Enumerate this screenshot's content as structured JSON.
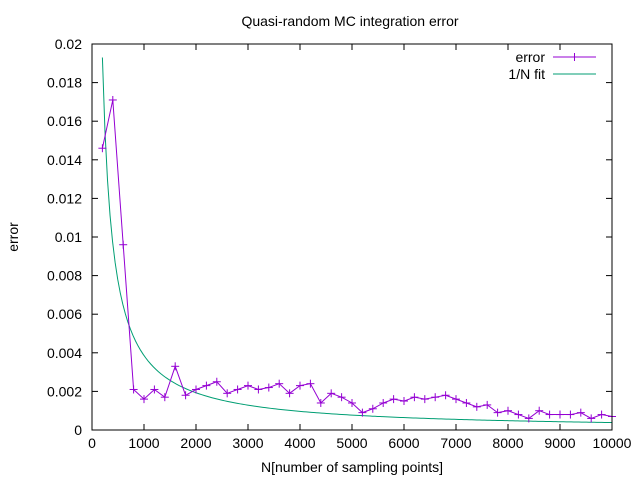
{
  "chart_data": {
    "type": "line",
    "title": "Quasi-random MC integration error",
    "xlabel": "N[number of sampling points]",
    "ylabel": "error",
    "xlim": [
      0,
      10000
    ],
    "ylim": [
      0,
      0.02
    ],
    "xticks": [
      0,
      1000,
      2000,
      3000,
      4000,
      5000,
      6000,
      7000,
      8000,
      9000,
      10000
    ],
    "xtick_labels": [
      "0",
      "1000",
      "2000",
      "3000",
      "4000",
      "5000",
      "6000",
      "7000",
      "8000",
      "9000",
      "10000"
    ],
    "yticks": [
      0,
      0.002,
      0.004,
      0.006,
      0.008,
      0.01,
      0.012,
      0.014,
      0.016,
      0.018,
      0.02
    ],
    "ytick_labels": [
      "0",
      "0.002",
      "0.004",
      "0.006",
      "0.008",
      "0.01",
      "0.012",
      "0.014",
      "0.016",
      "0.018",
      "0.02"
    ],
    "grid": false,
    "legend_position": "top-right",
    "series": [
      {
        "name": "error",
        "color": "#9400d3",
        "marker": "plus",
        "x": [
          200,
          400,
          600,
          800,
          1000,
          1200,
          1400,
          1600,
          1800,
          2000,
          2200,
          2400,
          2600,
          2800,
          3000,
          3200,
          3400,
          3600,
          3800,
          4000,
          4200,
          4400,
          4600,
          4800,
          5000,
          5200,
          5400,
          5600,
          5800,
          6000,
          6200,
          6400,
          6600,
          6800,
          7000,
          7200,
          7400,
          7600,
          7800,
          8000,
          8200,
          8400,
          8600,
          8800,
          9000,
          9200,
          9400,
          9600,
          9800,
          10000
        ],
        "y": [
          0.0146,
          0.0171,
          0.0096,
          0.0021,
          0.0016,
          0.0021,
          0.0017,
          0.0033,
          0.0018,
          0.0021,
          0.0023,
          0.0025,
          0.0019,
          0.0021,
          0.0023,
          0.0021,
          0.0022,
          0.0024,
          0.0019,
          0.0023,
          0.0024,
          0.0014,
          0.0019,
          0.0017,
          0.0014,
          0.0009,
          0.0011,
          0.0014,
          0.0016,
          0.0015,
          0.0017,
          0.0016,
          0.0017,
          0.0018,
          0.0016,
          0.0014,
          0.0012,
          0.0013,
          0.0009,
          0.001,
          0.0008,
          0.0006,
          0.001,
          0.0008,
          0.0008,
          0.0008,
          0.0009,
          0.0006,
          0.0008,
          0.0007
        ]
      },
      {
        "name": "1/N fit",
        "color": "#009e73",
        "function": "reciprocal",
        "coefficient": 3.86,
        "x_range": [
          200,
          10000
        ]
      }
    ]
  }
}
